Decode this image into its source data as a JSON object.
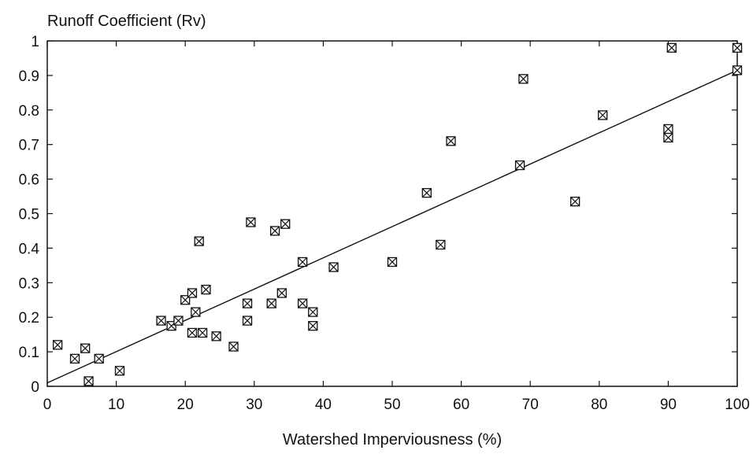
{
  "chart_data": {
    "type": "scatter",
    "title": "",
    "ylabel": "Runoff Coefficient (Rv)",
    "xlabel": "Watershed Imperviousness (%)",
    "xlim": [
      0,
      100
    ],
    "ylim": [
      0,
      1
    ],
    "xticks": [
      "0",
      "10",
      "20",
      "30",
      "40",
      "50",
      "60",
      "70",
      "80",
      "90",
      "100"
    ],
    "yticks": [
      "0",
      "0.1",
      "0.2",
      "0.3",
      "0.4",
      "0.5",
      "0.6",
      "0.7",
      "0.8",
      "0.9",
      "1"
    ],
    "grid": false,
    "marker": "boxed-x",
    "series": [
      {
        "x": [
          1.5,
          4,
          5.5,
          6,
          7.5,
          10.5,
          16.5,
          18,
          19,
          20,
          21,
          21,
          21.5,
          22,
          22.5,
          23,
          24.5,
          27,
          29,
          29,
          29.5,
          32.5,
          33,
          34,
          34.5,
          37,
          37,
          38.5,
          38.5,
          41.5,
          50,
          55,
          57,
          58.5,
          68.5,
          69,
          76.5,
          80.5,
          90,
          90,
          90.5,
          100,
          100
        ],
        "y": [
          0.12,
          0.08,
          0.11,
          0.015,
          0.08,
          0.045,
          0.19,
          0.175,
          0.19,
          0.25,
          0.155,
          0.27,
          0.215,
          0.42,
          0.155,
          0.28,
          0.145,
          0.115,
          0.19,
          0.24,
          0.475,
          0.24,
          0.45,
          0.27,
          0.47,
          0.36,
          0.24,
          0.215,
          0.175,
          0.345,
          0.36,
          0.56,
          0.41,
          0.71,
          0.64,
          0.89,
          0.535,
          0.785,
          0.72,
          0.745,
          0.98,
          0.98,
          0.915
        ]
      }
    ],
    "trendline": {
      "type": "linear",
      "x": [
        0,
        100
      ],
      "y": [
        0.01,
        0.915
      ]
    }
  }
}
